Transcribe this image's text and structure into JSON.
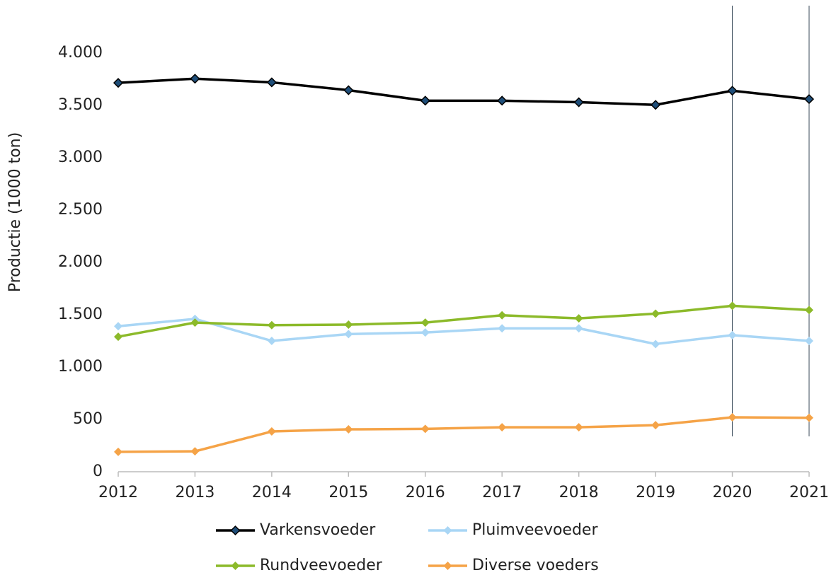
{
  "chart_data": {
    "type": "line",
    "y_label": "Productie (1000 ton)",
    "categories": [
      "2012",
      "2013",
      "2014",
      "2015",
      "2016",
      "2017",
      "2018",
      "2019",
      "2020",
      "2021"
    ],
    "series": [
      {
        "name": "Varkensvoeder",
        "color": "#000000",
        "marker_color": "#1f4e79",
        "values": [
          3715,
          3755,
          3720,
          3645,
          3545,
          3545,
          3530,
          3505,
          3640,
          3560
        ]
      },
      {
        "name": "Pluimveevoeder",
        "color": "#a9d6f5",
        "values": [
          1390,
          1460,
          1250,
          1315,
          1330,
          1370,
          1370,
          1220,
          1305,
          1250
        ]
      },
      {
        "name": "Rundveevoeder",
        "color": "#8cba2a",
        "values": [
          1290,
          1425,
          1400,
          1405,
          1425,
          1495,
          1465,
          1510,
          1585,
          1545
        ]
      },
      {
        "name": "Diverse voeders",
        "color": "#f5a347",
        "values": [
          190,
          195,
          385,
          405,
          410,
          425,
          425,
          445,
          520,
          515
        ]
      }
    ],
    "ylim": [
      0,
      4000
    ],
    "yticks": [
      0,
      500,
      {
        "value": 1000,
        "label": "1.000"
      },
      {
        "value": 1500,
        "label": "1.500"
      },
      {
        "value": 2000,
        "label": "2.000"
      },
      {
        "value": 2500,
        "label": "2.500"
      },
      {
        "value": 3000,
        "label": "3.000"
      },
      {
        "value": 3500,
        "label": "3.500"
      },
      {
        "value": 4000,
        "label": "4.000"
      }
    ],
    "marker_lines": [
      "2020",
      "2021"
    ],
    "grid": false,
    "legend": "bottom"
  }
}
